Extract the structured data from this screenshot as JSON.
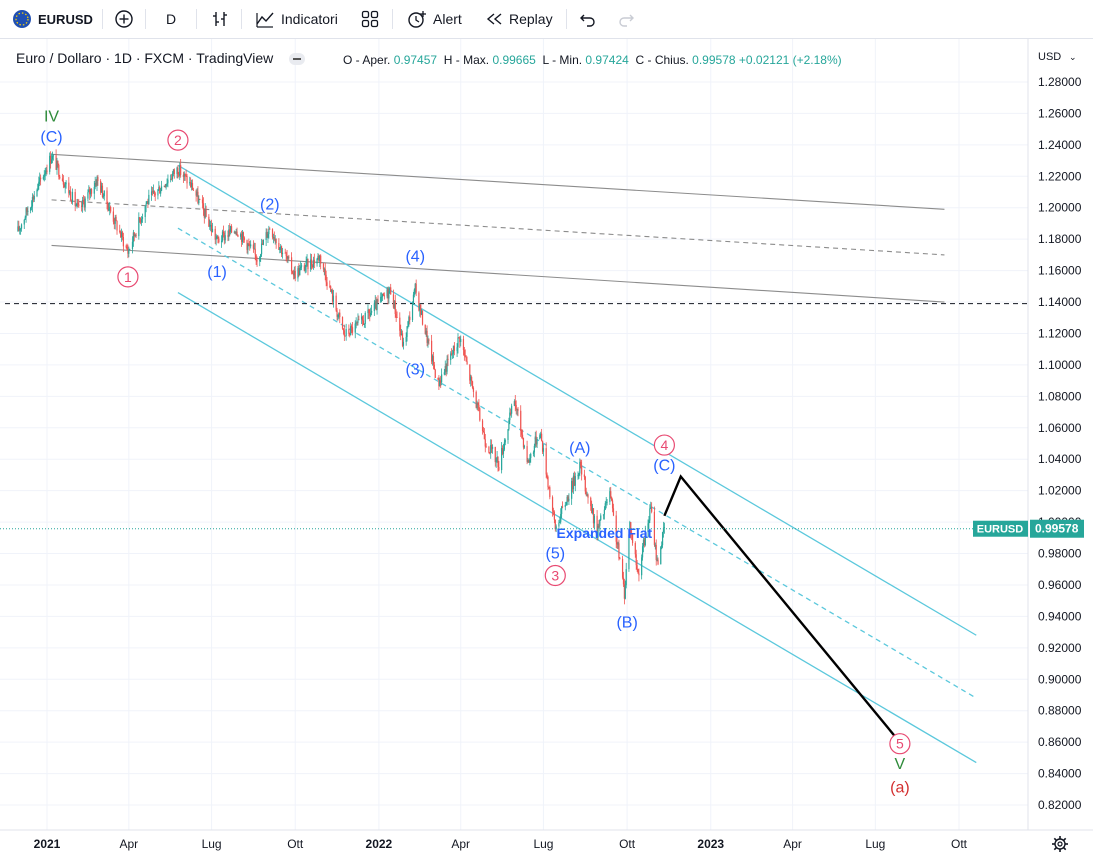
{
  "toolbar": {
    "symbol": "EURUSD",
    "interval": "D",
    "indicators_label": "Indicatori",
    "alert_label": "Alert",
    "replay_label": "Replay"
  },
  "legend": {
    "instrument": "Euro / Dollaro · 1D · FXCM · TradingView"
  },
  "ohlc": {
    "open_label": "O - Aper.",
    "open": "0.97457",
    "high_label": "H - Max.",
    "high": "0.99665",
    "low_label": "L - Min.",
    "low": "0.97424",
    "close_label": "C - Chius.",
    "close": "0.99578",
    "change": "+0.02121 (+2.18%)"
  },
  "currency": "USD",
  "colors": {
    "up": "#26a69a",
    "down": "#ef5350",
    "channel": "#5bc8dc",
    "trend": "#8c8c8c",
    "wave_blue": "#2962ff",
    "wave_pink": "#e84a72",
    "wave_green": "#2e8b3a",
    "wave_red": "#d32f2f",
    "price_label_bg": "#26a69a"
  },
  "chart_data": {
    "type": "candlestick",
    "symbol": "EURUSD",
    "last_price": 0.99578,
    "price_label": "0.99578",
    "y_ticks": [
      "1.28000",
      "1.26000",
      "1.24000",
      "1.22000",
      "1.20000",
      "1.18000",
      "1.16000",
      "1.14000",
      "1.12000",
      "1.10000",
      "1.08000",
      "1.06000",
      "1.04000",
      "1.02000",
      "1.00000",
      "0.98000",
      "0.96000",
      "0.94000",
      "0.92000",
      "0.90000",
      "0.88000",
      "0.86000",
      "0.84000",
      "0.82000"
    ],
    "ylim": [
      0.81,
      1.29
    ],
    "x_ticks": [
      {
        "label": "2021",
        "date": "2021-01-01",
        "bold": true
      },
      {
        "label": "Apr",
        "date": "2021-04-01"
      },
      {
        "label": "Lug",
        "date": "2021-07-01"
      },
      {
        "label": "Ott",
        "date": "2021-10-01"
      },
      {
        "label": "2022",
        "date": "2022-01-01",
        "bold": true
      },
      {
        "label": "Apr",
        "date": "2022-04-01"
      },
      {
        "label": "Lug",
        "date": "2022-07-01"
      },
      {
        "label": "Ott",
        "date": "2022-10-01"
      },
      {
        "label": "2023",
        "date": "2023-01-01",
        "bold": true
      },
      {
        "label": "Apr",
        "date": "2023-04-01"
      },
      {
        "label": "Lug",
        "date": "2023-07-01"
      },
      {
        "label": "Ott",
        "date": "2023-10-01"
      }
    ],
    "price_path": [
      [
        "2020-11-30",
        1.185
      ],
      [
        "2021-01-06",
        1.233
      ],
      [
        "2021-02-05",
        1.198
      ],
      [
        "2021-02-25",
        1.218
      ],
      [
        "2021-03-31",
        1.172
      ],
      [
        "2021-04-20",
        1.203
      ],
      [
        "2021-05-25",
        1.225
      ],
      [
        "2021-06-10",
        1.213
      ],
      [
        "2021-07-07",
        1.179
      ],
      [
        "2021-07-28",
        1.187
      ],
      [
        "2021-08-20",
        1.168
      ],
      [
        "2021-09-03",
        1.188
      ],
      [
        "2021-09-30",
        1.158
      ],
      [
        "2021-10-28",
        1.169
      ],
      [
        "2021-11-24",
        1.119
      ],
      [
        "2021-12-15",
        1.128
      ],
      [
        "2022-01-14",
        1.148
      ],
      [
        "2022-01-28",
        1.112
      ],
      [
        "2022-02-10",
        1.148
      ],
      [
        "2022-03-07",
        1.088
      ],
      [
        "2022-03-31",
        1.118
      ],
      [
        "2022-04-28",
        1.052
      ],
      [
        "2022-05-13",
        1.037
      ],
      [
        "2022-05-30",
        1.078
      ],
      [
        "2022-06-14",
        1.038
      ],
      [
        "2022-06-27",
        1.059
      ],
      [
        "2022-07-14",
        0.996
      ],
      [
        "2022-08-10",
        1.036
      ],
      [
        "2022-08-29",
        0.994
      ],
      [
        "2022-09-12",
        1.018
      ],
      [
        "2022-09-28",
        0.955
      ],
      [
        "2022-10-04",
        0.999
      ],
      [
        "2022-10-13",
        0.967
      ],
      [
        "2022-10-27",
        1.009
      ],
      [
        "2022-11-03",
        0.974
      ],
      [
        "2022-11-11",
        0.996
      ]
    ],
    "projection": [
      [
        "2022-11-11",
        1.004
      ],
      [
        "2022-11-29",
        1.029
      ],
      [
        "2023-07-25",
        0.862
      ]
    ],
    "lines": [
      {
        "kind": "trend",
        "style": "solid",
        "from": [
          "2021-01-06",
          1.234
        ],
        "to": [
          "2023-09-15",
          1.199
        ]
      },
      {
        "kind": "trend",
        "style": "dashed",
        "from": [
          "2021-01-06",
          1.205
        ],
        "to": [
          "2023-09-15",
          1.17
        ]
      },
      {
        "kind": "trend",
        "style": "solid",
        "from": [
          "2021-01-06",
          1.176
        ],
        "to": [
          "2023-09-15",
          1.14
        ]
      },
      {
        "kind": "channel",
        "style": "solid",
        "from": [
          "2021-05-25",
          1.227
        ],
        "to": [
          "2023-10-20",
          0.928
        ]
      },
      {
        "kind": "channel",
        "style": "dashed",
        "from": [
          "2021-05-25",
          1.187
        ],
        "to": [
          "2023-10-20",
          0.888
        ]
      },
      {
        "kind": "channel",
        "style": "solid",
        "from": [
          "2021-05-25",
          1.146
        ],
        "to": [
          "2023-10-20",
          0.847
        ]
      },
      {
        "kind": "horizontal",
        "style": "dashed",
        "price": 1.139
      }
    ],
    "wave_labels": [
      {
        "text": "IV",
        "date": "2021-01-06",
        "price": 1.258,
        "color": "wave_green",
        "circled": false
      },
      {
        "text": "(C)",
        "date": "2021-01-06",
        "price": 1.245,
        "color": "wave_blue",
        "circled": false
      },
      {
        "text": "2",
        "date": "2021-05-25",
        "price": 1.243,
        "color": "wave_pink",
        "circled": true
      },
      {
        "text": "1",
        "date": "2021-03-31",
        "price": 1.156,
        "color": "wave_pink",
        "circled": true
      },
      {
        "text": "(2)",
        "date": "2021-09-03",
        "price": 1.202,
        "color": "wave_blue",
        "circled": false
      },
      {
        "text": "(1)",
        "date": "2021-07-07",
        "price": 1.159,
        "color": "wave_blue",
        "circled": false
      },
      {
        "text": "(4)",
        "date": "2022-02-10",
        "price": 1.169,
        "color": "wave_blue",
        "circled": false
      },
      {
        "text": "(3)",
        "date": "2022-02-10",
        "price": 1.097,
        "color": "wave_blue",
        "circled": false
      },
      {
        "text": "(A)",
        "date": "2022-08-10",
        "price": 1.047,
        "color": "wave_blue",
        "circled": false
      },
      {
        "text": "4",
        "date": "2022-11-11",
        "price": 1.049,
        "color": "wave_pink",
        "circled": true
      },
      {
        "text": "(C)",
        "date": "2022-11-11",
        "price": 1.036,
        "color": "wave_blue",
        "circled": false
      },
      {
        "text": "Expanded Flat",
        "date": "2022-09-06",
        "price": 0.993,
        "color": "wave_blue",
        "circled": false,
        "size": 14
      },
      {
        "text": "(5)",
        "date": "2022-07-14",
        "price": 0.98,
        "color": "wave_blue",
        "circled": false
      },
      {
        "text": "3",
        "date": "2022-07-14",
        "price": 0.966,
        "color": "wave_pink",
        "circled": true
      },
      {
        "text": "(B)",
        "date": "2022-10-01",
        "price": 0.936,
        "color": "wave_blue",
        "circled": false
      },
      {
        "text": "5",
        "date": "2023-07-28",
        "price": 0.859,
        "color": "wave_pink",
        "circled": true
      },
      {
        "text": "V",
        "date": "2023-07-28",
        "price": 0.846,
        "color": "wave_green",
        "circled": false
      },
      {
        "text": "(a)",
        "date": "2023-07-28",
        "price": 0.831,
        "color": "wave_red",
        "circled": false
      }
    ]
  }
}
